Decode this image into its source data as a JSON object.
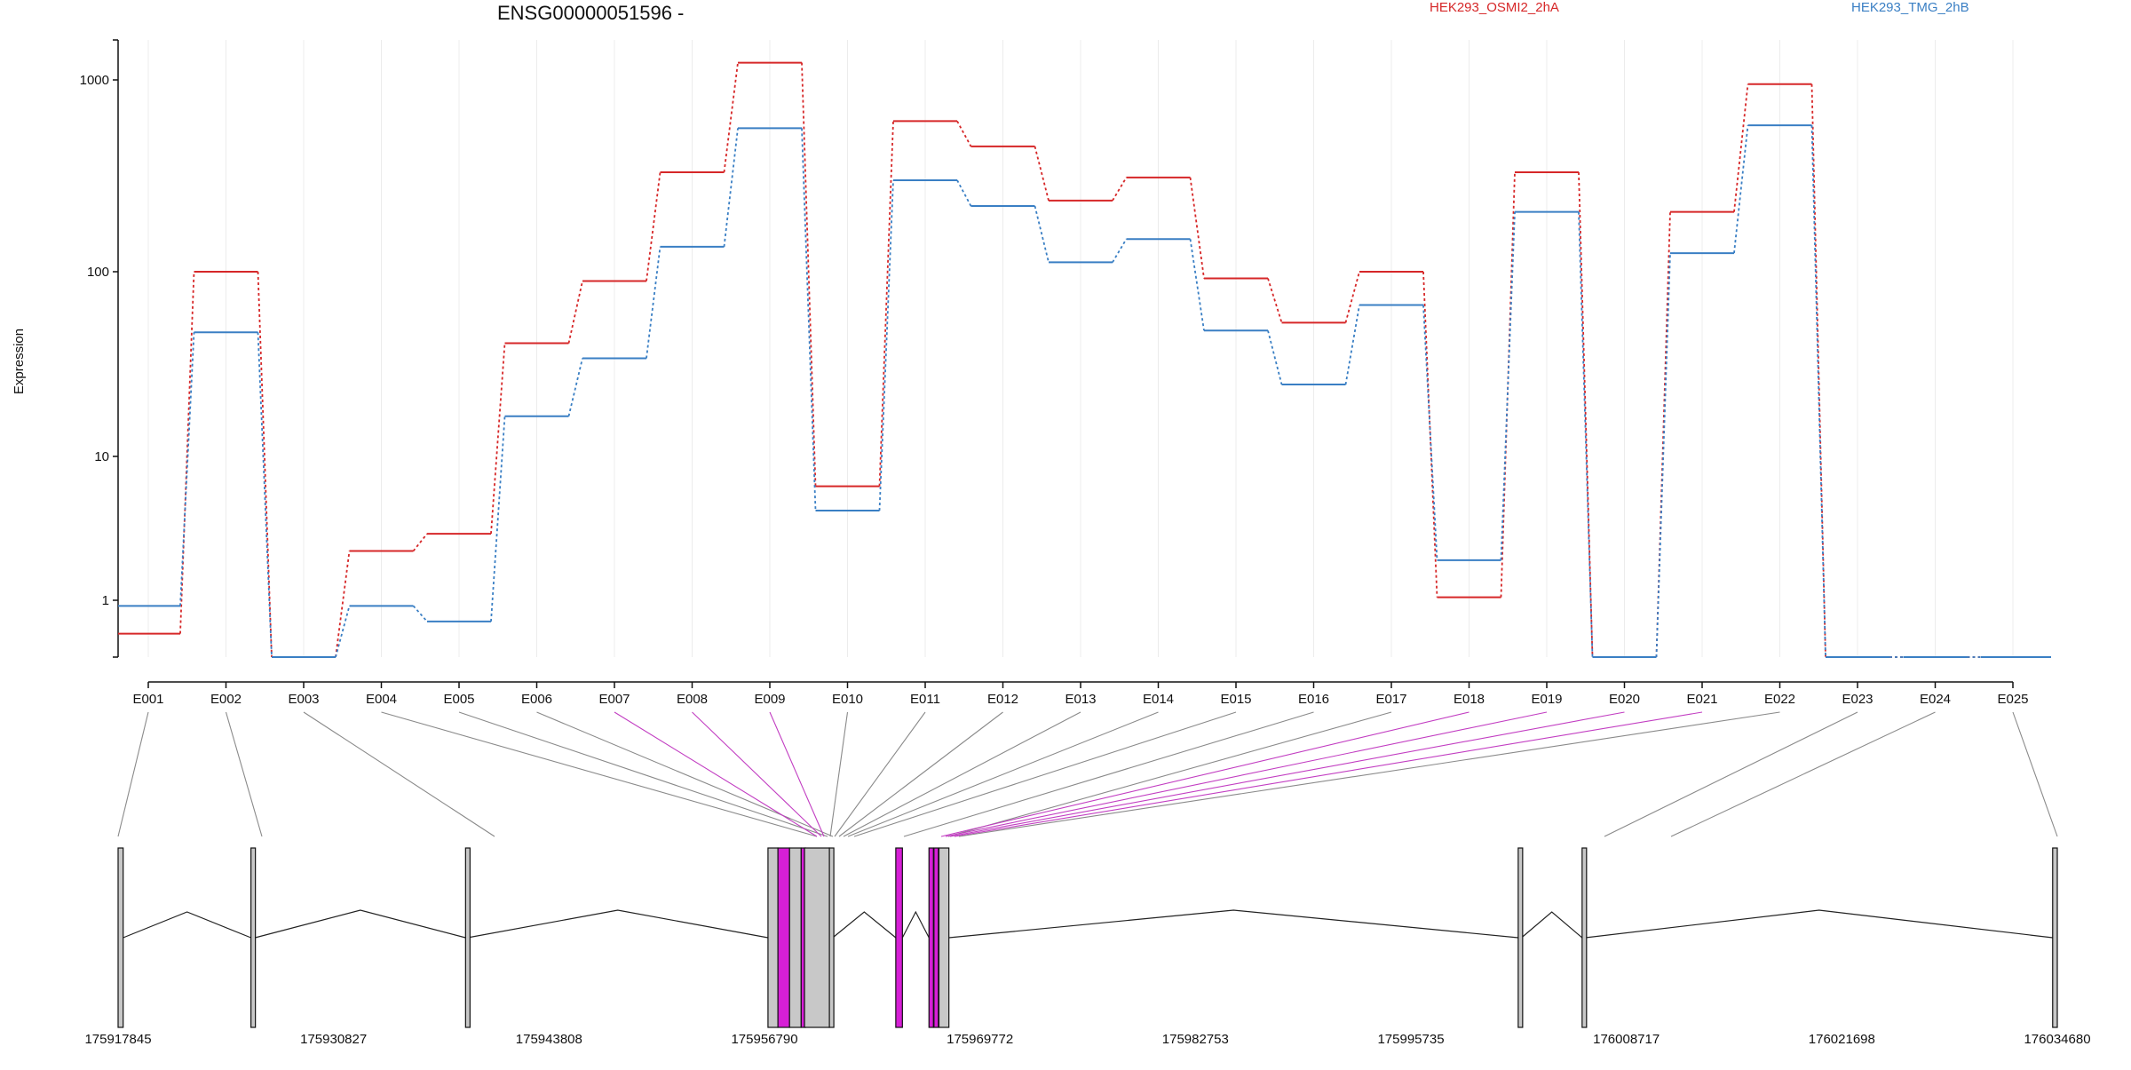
{
  "chart_data": {
    "type": "line",
    "title": "ENSG00000051596 -",
    "ylabel": "Expression",
    "y_scale": "log",
    "yticks": [
      "1",
      "10",
      "100",
      "1000"
    ],
    "categories": [
      "E001",
      "E002",
      "E003",
      "E004",
      "E005",
      "E006",
      "E007",
      "E008",
      "E009",
      "E010",
      "E011",
      "E012",
      "E013",
      "E014",
      "E015",
      "E016",
      "E017",
      "E018",
      "E019",
      "E020",
      "E021",
      "E022",
      "E023",
      "E024",
      "E025"
    ],
    "series": [
      {
        "name": "HEK293_OSMI2_2hA",
        "color": "#d62728",
        "values": [
          0.65,
          100,
          0.48,
          2.2,
          2.9,
          41,
          89,
          330,
          1230,
          6.2,
          610,
          450,
          235,
          310,
          92,
          53,
          100,
          1.05,
          330,
          0.48,
          205,
          950,
          0.48,
          0.48,
          0.48
        ]
      },
      {
        "name": "HEK293_TMG_2hB",
        "color": "#3a7fc4",
        "values": [
          0.93,
          47,
          0.48,
          0.93,
          0.76,
          16.5,
          34,
          135,
          560,
          4.2,
          300,
          220,
          112,
          148,
          48,
          24.5,
          66,
          1.9,
          205,
          0.48,
          125,
          580,
          0.48,
          0.48,
          0.48
        ]
      }
    ],
    "highlighted_exons": [
      "E007",
      "E008",
      "E009",
      "E018",
      "E019",
      "E020",
      "E021"
    ],
    "gene_track": {
      "genomic_ticks": [
        "175917845",
        "175930827",
        "175943808",
        "175956790",
        "175969772",
        "175982753",
        "175995735",
        "176008717",
        "176021698",
        "176034680"
      ],
      "start": 175917845,
      "end": 176034680,
      "exons": [
        [
          175917845,
          175918150,
          false
        ],
        [
          175925850,
          175926100,
          false
        ],
        [
          175938780,
          175938900,
          false
        ],
        [
          175957000,
          175957600,
          false
        ],
        [
          175957600,
          175958300,
          true
        ],
        [
          175958300,
          175959000,
          false
        ],
        [
          175959000,
          175959200,
          true
        ],
        [
          175959200,
          175960700,
          false
        ],
        [
          175960700,
          175960900,
          false
        ],
        [
          175964700,
          175965100,
          true
        ],
        [
          175966700,
          175966950,
          true
        ],
        [
          175967000,
          175967200,
          true
        ],
        [
          175967300,
          175967900,
          false
        ],
        [
          176002200,
          176002400,
          false
        ],
        [
          176006050,
          176006250,
          false
        ],
        [
          176034400,
          176034680,
          false
        ]
      ]
    }
  }
}
